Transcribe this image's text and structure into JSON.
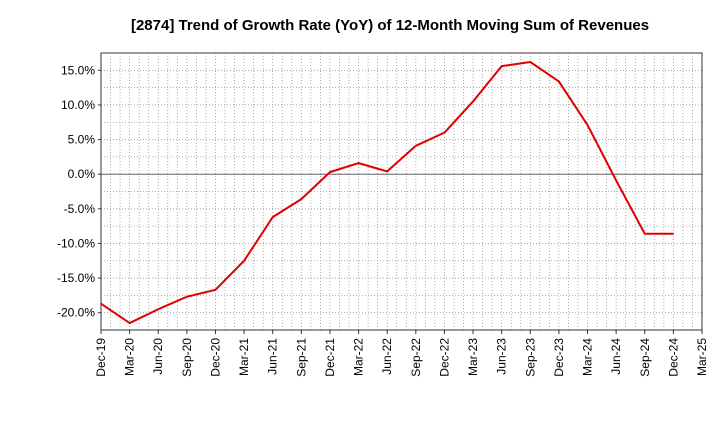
{
  "chart_data": {
    "type": "line",
    "title": "[2874]  Trend of Growth Rate (YoY) of 12-Month Moving Sum of Revenues",
    "xlabel": "",
    "ylabel": "",
    "ylim": [
      -22.5,
      17.5
    ],
    "yticks": [
      15,
      10,
      5,
      0,
      -5,
      -10,
      -15,
      -20
    ],
    "yticklabels": [
      "15.0%",
      "10.0%",
      "5.0%",
      "0.0%",
      "-5.0%",
      "-10.0%",
      "-15.0%",
      "-20.0%"
    ],
    "xticklabels": [
      "Dec-19",
      "Mar-20",
      "Jun-20",
      "Sep-20",
      "Dec-20",
      "Mar-21",
      "Jun-21",
      "Sep-21",
      "Dec-21",
      "Mar-22",
      "Jun-22",
      "Sep-22",
      "Dec-22",
      "Mar-23",
      "Jun-23",
      "Sep-23",
      "Dec-23",
      "Mar-24",
      "Jun-24",
      "Sep-24",
      "Dec-24",
      "Mar-25"
    ],
    "grid": true,
    "line_color": "#e00000",
    "series": [
      {
        "x": [
          "Dec-19",
          "Mar-20",
          "Jun-20",
          "Sep-20",
          "Dec-20",
          "Mar-21",
          "Jun-21",
          "Sep-21",
          "Dec-21",
          "Mar-22",
          "Jun-22",
          "Sep-22",
          "Dec-22",
          "Mar-23",
          "Jun-23",
          "Sep-23",
          "Dec-23",
          "Mar-24",
          "Jun-24",
          "Sep-24",
          "Dec-24"
        ],
        "values": [
          -18.7,
          -21.5,
          -19.5,
          -17.7,
          -16.7,
          -12.5,
          -6.2,
          -3.6,
          0.3,
          1.6,
          0.4,
          4.1,
          6.0,
          10.5,
          15.6,
          16.2,
          13.4,
          7.1,
          -0.9,
          -8.6,
          -8.6
        ]
      }
    ]
  }
}
